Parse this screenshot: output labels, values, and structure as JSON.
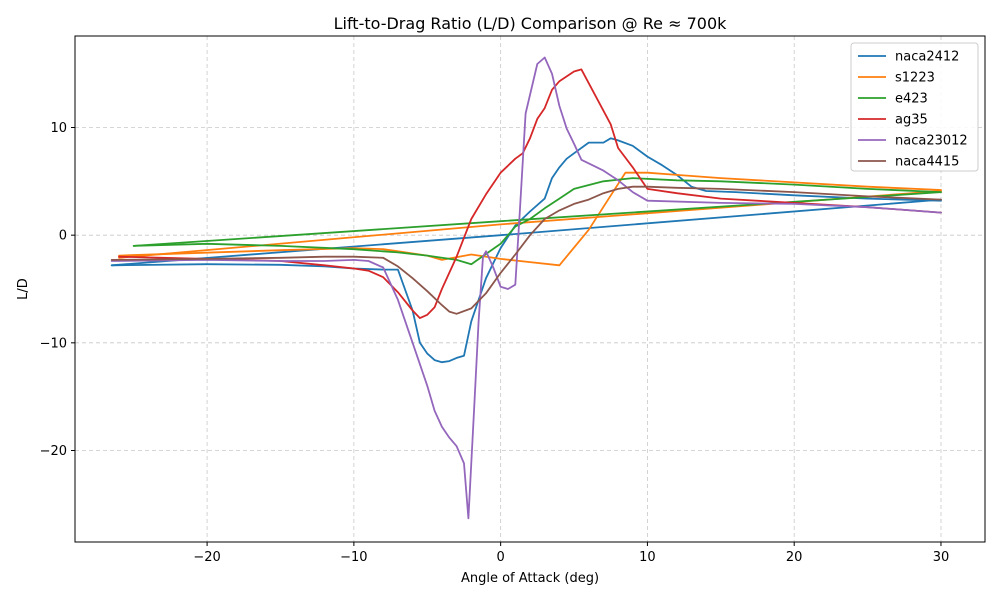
{
  "chart_data": {
    "type": "line",
    "title": "Lift-to-Drag Ratio (L/D) Comparison @ Re ≈ 700k",
    "xlabel": "Angle of Attack (deg)",
    "ylabel": "L/D",
    "xlim": [
      -29,
      33
    ],
    "ylim": [
      -28.5,
      18.5
    ],
    "xticks": [
      -20,
      -10,
      0,
      10,
      20,
      30
    ],
    "yticks": [
      -20,
      -10,
      0,
      10
    ],
    "grid": true,
    "legend_position": "top-right",
    "series": [
      {
        "name": "naca2412",
        "color": "#1f77b4",
        "segments": [
          [
            [
              -26.5,
              -2.8
            ],
            [
              -20,
              -2.7
            ],
            [
              -15,
              -2.75
            ],
            [
              -12,
              -2.9
            ],
            [
              -10,
              -3.1
            ],
            [
              -8,
              -3.2
            ],
            [
              -7,
              -3.2
            ],
            [
              -6,
              -7
            ],
            [
              -5.5,
              -10
            ],
            [
              -5,
              -11
            ],
            [
              -4.5,
              -11.6
            ],
            [
              -4,
              -11.8
            ],
            [
              -3.5,
              -11.7
            ],
            [
              -3,
              -11.4
            ],
            [
              -2.5,
              -11.2
            ],
            [
              -2,
              -8
            ],
            [
              -1,
              -4
            ],
            [
              0,
              -1.2
            ],
            [
              1,
              0.9
            ],
            [
              2,
              2.2
            ],
            [
              3,
              3.4
            ],
            [
              3.5,
              5.3
            ],
            [
              4,
              6.3
            ],
            [
              4.5,
              7.1
            ],
            [
              5,
              7.6
            ],
            [
              6,
              8.6
            ],
            [
              7,
              8.6
            ],
            [
              7.5,
              9
            ],
            [
              8,
              8.8
            ],
            [
              9,
              8.3
            ],
            [
              10,
              7.3
            ],
            [
              11,
              6.5
            ],
            [
              12,
              5.6
            ],
            [
              13,
              4.5
            ],
            [
              14,
              4.1
            ],
            [
              16,
              4
            ],
            [
              20,
              3.7
            ],
            [
              25,
              3.4
            ],
            [
              30,
              3.2
            ]
          ],
          [
            [
              -26.5,
              -2.8
            ],
            [
              0,
              0
            ],
            [
              30,
              3.3
            ]
          ]
        ]
      },
      {
        "name": "s1223",
        "color": "#ff7f0e",
        "segments": [
          [
            [
              -26,
              -1.9
            ],
            [
              -15,
              -1.4
            ],
            [
              -10,
              -1.2
            ],
            [
              -8,
              -1.3
            ],
            [
              -7,
              -1.5
            ],
            [
              -5,
              -1.9
            ],
            [
              -4,
              -2.3
            ],
            [
              -2,
              -1.8
            ],
            [
              0,
              -2.2
            ],
            [
              2,
              -2.5
            ],
            [
              4,
              -2.8
            ],
            [
              6,
              0.5
            ],
            [
              8.5,
              5.8
            ],
            [
              10,
              5.8
            ],
            [
              12,
              5.6
            ],
            [
              15,
              5.3
            ],
            [
              20,
              4.9
            ],
            [
              25,
              4.5
            ],
            [
              30,
              4.2
            ]
          ],
          [
            [
              -26,
              -2.1
            ],
            [
              0,
              1
            ],
            [
              30,
              4.1
            ]
          ]
        ]
      },
      {
        "name": "e423",
        "color": "#2ca02c",
        "segments": [
          [
            [
              -25,
              -1
            ],
            [
              -20,
              -0.8
            ],
            [
              -15,
              -1
            ],
            [
              -10,
              -1.3
            ],
            [
              -7,
              -1.6
            ],
            [
              -5,
              -1.9
            ],
            [
              -3,
              -2.3
            ],
            [
              -2,
              -2.7
            ],
            [
              0,
              -0.8
            ],
            [
              1,
              0.8
            ],
            [
              2,
              1.5
            ],
            [
              3,
              2.5
            ],
            [
              4,
              3.4
            ],
            [
              5,
              4.3
            ],
            [
              7,
              5
            ],
            [
              9,
              5.3
            ],
            [
              12,
              5.1
            ],
            [
              15,
              5
            ],
            [
              20,
              4.7
            ],
            [
              25,
              4.3
            ],
            [
              30,
              4
            ]
          ],
          [
            [
              -25,
              -1
            ],
            [
              0,
              1.3
            ],
            [
              30,
              4
            ]
          ]
        ]
      },
      {
        "name": "ag35",
        "color": "#d62728",
        "segments": [
          [
            [
              -26,
              -2
            ],
            [
              -20,
              -2.2
            ],
            [
              -15,
              -2.4
            ],
            [
              -12,
              -2.8
            ],
            [
              -10,
              -3.1
            ],
            [
              -9,
              -3.3
            ],
            [
              -8,
              -3.9
            ],
            [
              -7,
              -5.3
            ],
            [
              -6,
              -7
            ],
            [
              -5.5,
              -7.7
            ],
            [
              -5,
              -7.4
            ],
            [
              -4.5,
              -6.7
            ],
            [
              -4,
              -5
            ],
            [
              -3,
              -2
            ],
            [
              -2,
              1.5
            ],
            [
              -1,
              3.8
            ],
            [
              0,
              5.8
            ],
            [
              1,
              7.1
            ],
            [
              1.5,
              7.6
            ],
            [
              2,
              9
            ],
            [
              2.5,
              10.8
            ],
            [
              3,
              11.8
            ],
            [
              3.5,
              13.5
            ],
            [
              4,
              14.3
            ],
            [
              5,
              15.2
            ],
            [
              5.5,
              15.4
            ],
            [
              7.5,
              10.3
            ],
            [
              8,
              8.1
            ],
            [
              9,
              6.3
            ],
            [
              10,
              4.3
            ],
            [
              12,
              3.9
            ],
            [
              15,
              3.4
            ],
            [
              20,
              3
            ],
            [
              25,
              2.6
            ],
            [
              30,
              2.1
            ]
          ]
        ]
      },
      {
        "name": "naca23012",
        "color": "#9467bd",
        "segments": [
          [
            [
              -26.5,
              -2.4
            ],
            [
              -20,
              -2.3
            ],
            [
              -15,
              -2.4
            ],
            [
              -12,
              -2.4
            ],
            [
              -10,
              -2.3
            ],
            [
              -9,
              -2.4
            ],
            [
              -8,
              -3
            ],
            [
              -7,
              -6
            ],
            [
              -6,
              -10
            ],
            [
              -5,
              -14
            ],
            [
              -4.5,
              -16.3
            ],
            [
              -4,
              -17.8
            ],
            [
              -3.5,
              -18.8
            ],
            [
              -3,
              -19.6
            ],
            [
              -2.5,
              -21.2
            ],
            [
              -2.2,
              -26.3
            ],
            [
              -1.8,
              -16
            ],
            [
              -1.5,
              -8
            ],
            [
              -1.2,
              -2
            ],
            [
              -1,
              -1.5
            ],
            [
              -0.5,
              -3
            ],
            [
              0,
              -4.8
            ],
            [
              0.5,
              -5
            ],
            [
              1,
              -4.6
            ],
            [
              1.3,
              2
            ],
            [
              1.7,
              11.3
            ],
            [
              2.5,
              15.9
            ],
            [
              3,
              16.5
            ],
            [
              3.5,
              15
            ],
            [
              4,
              12
            ],
            [
              4.5,
              9.9
            ],
            [
              5,
              8.5
            ],
            [
              5.5,
              7
            ],
            [
              7,
              6
            ],
            [
              8,
              5.1
            ],
            [
              9,
              4
            ],
            [
              10,
              3.2
            ],
            [
              15,
              3
            ],
            [
              20,
              2.9
            ],
            [
              25,
              2.6
            ],
            [
              30,
              2.1
            ]
          ]
        ]
      },
      {
        "name": "naca4415",
        "color": "#8c564b",
        "segments": [
          [
            [
              -26.5,
              -2.3
            ],
            [
              -20,
              -2.2
            ],
            [
              -15,
              -2.1
            ],
            [
              -12,
              -2
            ],
            [
              -10,
              -2
            ],
            [
              -8,
              -2.1
            ],
            [
              -7,
              -2.9
            ],
            [
              -6,
              -4
            ],
            [
              -5,
              -5.2
            ],
            [
              -4,
              -6.5
            ],
            [
              -3.5,
              -7.1
            ],
            [
              -3,
              -7.3
            ],
            [
              -2,
              -6.8
            ],
            [
              -1,
              -5.4
            ],
            [
              0,
              -3.5
            ],
            [
              1,
              -1.8
            ],
            [
              2,
              0
            ],
            [
              3,
              1.5
            ],
            [
              4,
              2.3
            ],
            [
              5,
              2.9
            ],
            [
              6,
              3.3
            ],
            [
              7,
              3.9
            ],
            [
              8,
              4.3
            ],
            [
              9,
              4.5
            ],
            [
              10,
              4.5
            ],
            [
              12,
              4.4
            ],
            [
              15,
              4.3
            ],
            [
              20,
              4
            ],
            [
              25,
              3.6
            ],
            [
              30,
              3.3
            ]
          ]
        ]
      }
    ]
  }
}
